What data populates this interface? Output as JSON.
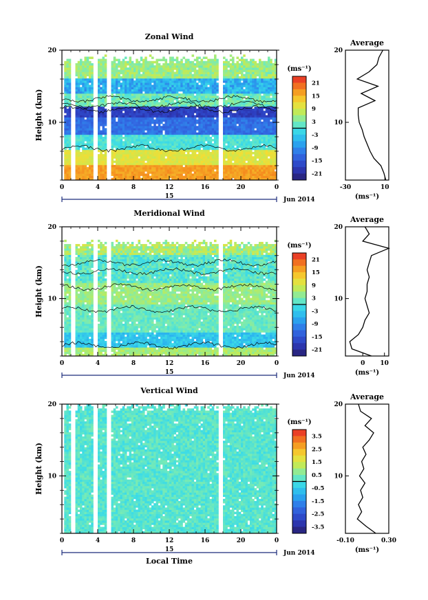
{
  "chart_data": [
    {
      "type": "heatmap",
      "title": "Zonal Wind",
      "ylabel": "Height (km)",
      "xlabel": "",
      "x_ticks": [
        "0",
        "4",
        "8",
        "12",
        "16",
        "20",
        "0"
      ],
      "y_ticks": [
        "20",
        "10"
      ],
      "ylim": [
        2,
        20
      ],
      "xlim": [
        0,
        24
      ],
      "date_tick": "15",
      "date_label": "Jun 2014",
      "colorbar": {
        "unit": "(ms⁻¹)",
        "ticks": [
          "21",
          "15",
          "9",
          "3",
          "-3",
          "-9",
          "-15",
          "-21"
        ],
        "range": [
          -24,
          24
        ]
      },
      "data_gaps_hours": [
        [
          0,
          0.2
        ],
        [
          1.1,
          1.6
        ],
        [
          3.5,
          4.0
        ],
        [
          4.9,
          5.5
        ],
        [
          17.6,
          18.1
        ]
      ],
      "profile": {
        "title": "Average",
        "unit": "(ms⁻¹)",
        "x_ticks": [
          "-30",
          "10"
        ],
        "xlim": [
          -30,
          14
        ],
        "y_ticks": [
          "20",
          "10"
        ],
        "heights_km": [
          2,
          3,
          4,
          5,
          6,
          7,
          8,
          9,
          10,
          11,
          12,
          13,
          14,
          15,
          16,
          17,
          18,
          19,
          20
        ],
        "values": [
          11,
          9,
          6,
          -1,
          -5,
          -8,
          -11,
          -13,
          -16,
          -17,
          -17,
          0,
          -14,
          3,
          -18,
          -6,
          2,
          4,
          8
        ]
      }
    },
    {
      "type": "heatmap",
      "title": "Meridional Wind",
      "ylabel": "Height (km)",
      "xlabel": "",
      "x_ticks": [
        "0",
        "4",
        "8",
        "12",
        "16",
        "20",
        "0"
      ],
      "y_ticks": [
        "20",
        "10"
      ],
      "ylim": [
        2,
        20
      ],
      "xlim": [
        0,
        24
      ],
      "date_tick": "15",
      "date_label": "Jun 2014",
      "colorbar": {
        "unit": "(ms⁻¹)",
        "ticks": [
          "21",
          "15",
          "9",
          "3",
          "-3",
          "-9",
          "-15",
          "-21"
        ],
        "range": [
          -24,
          24
        ]
      },
      "data_gaps_hours": [
        [
          0,
          0.2
        ],
        [
          1.1,
          1.6
        ],
        [
          3.5,
          4.0
        ],
        [
          4.9,
          5.5
        ],
        [
          17.6,
          18.1
        ]
      ],
      "profile": {
        "title": "Average",
        "unit": "(ms⁻¹)",
        "x_ticks": [
          "0",
          "10"
        ],
        "xlim": [
          -8,
          12
        ],
        "y_ticks": [
          "20",
          "10"
        ],
        "heights_km": [
          2,
          3,
          4,
          5,
          6,
          7,
          8,
          9,
          10,
          11,
          12,
          13,
          14,
          15,
          16,
          17,
          18,
          19,
          20
        ],
        "values": [
          4,
          -5,
          -6,
          -2,
          0,
          1,
          3,
          2,
          1,
          2,
          2,
          3,
          2,
          3,
          4,
          12,
          0,
          3,
          1
        ]
      }
    },
    {
      "type": "heatmap",
      "title": "Vertical Wind",
      "ylabel": "Height (km)",
      "xlabel": "Local Time",
      "x_ticks": [
        "0",
        "4",
        "8",
        "12",
        "16",
        "20",
        "0"
      ],
      "y_ticks": [
        "20",
        "10"
      ],
      "ylim": [
        2,
        20
      ],
      "xlim": [
        0,
        24
      ],
      "date_tick": "15",
      "date_label": "Jun 2014",
      "colorbar": {
        "unit": "(ms⁻¹)",
        "ticks": [
          "3.5",
          "2.5",
          "1.5",
          "0.5",
          "-0.5",
          "-1.5",
          "-2.5",
          "-3.5"
        ],
        "range": [
          -4,
          4
        ]
      },
      "data_gaps_hours": [
        [
          0,
          0.2
        ],
        [
          1.1,
          1.6
        ],
        [
          3.5,
          4.0
        ],
        [
          4.9,
          5.5
        ],
        [
          17.6,
          18.1
        ]
      ],
      "profile": {
        "title": "Average",
        "unit": "(ms⁻¹)",
        "x_ticks": [
          "-0.10",
          "0.30"
        ],
        "xlim": [
          -0.1,
          0.3
        ],
        "y_ticks": [
          "20",
          "10"
        ],
        "heights_km": [
          2,
          3,
          4,
          5,
          6,
          7,
          8,
          9,
          10,
          11,
          12,
          13,
          14,
          15,
          16,
          17,
          18,
          19,
          20
        ],
        "values": [
          0.18,
          0.09,
          0.01,
          0.05,
          0.02,
          0.06,
          0.04,
          0.08,
          0.03,
          0.07,
          0.05,
          0.09,
          0.06,
          0.12,
          0.16,
          0.08,
          0.14,
          0.04,
          0.02
        ]
      }
    }
  ]
}
